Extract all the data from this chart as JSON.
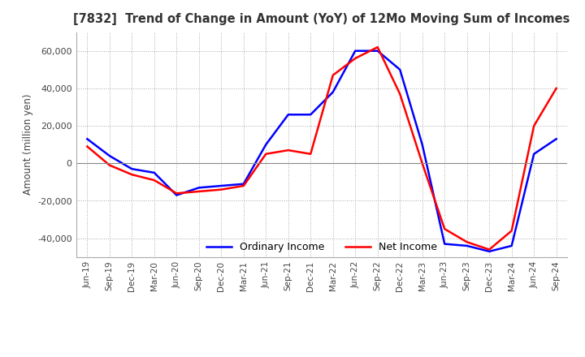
{
  "title": "[7832]  Trend of Change in Amount (YoY) of 12Mo Moving Sum of Incomes",
  "ylabel": "Amount (million yen)",
  "legend_labels": [
    "Ordinary Income",
    "Net Income"
  ],
  "line_colors": [
    "blue",
    "red"
  ],
  "background_color": "#ffffff",
  "grid_color": "#aaaaaa",
  "ylim": [
    -50000,
    70000
  ],
  "yticks": [
    -40000,
    -20000,
    0,
    20000,
    40000,
    60000
  ],
  "dates": [
    "Jun-19",
    "Sep-19",
    "Dec-19",
    "Mar-20",
    "Jun-20",
    "Sep-20",
    "Dec-20",
    "Mar-21",
    "Jun-21",
    "Sep-21",
    "Dec-21",
    "Mar-22",
    "Jun-22",
    "Sep-22",
    "Dec-22",
    "Mar-23",
    "Jun-23",
    "Sep-23",
    "Dec-23",
    "Mar-24",
    "Jun-24",
    "Sep-24"
  ],
  "ordinary_income": [
    13000,
    4000,
    -3000,
    -5000,
    -17000,
    -13000,
    -12000,
    -11000,
    10000,
    26000,
    26000,
    38000,
    60000,
    60000,
    50000,
    10000,
    -43000,
    -44000,
    -47000,
    -44000,
    5000,
    13000
  ],
  "net_income": [
    9000,
    -1000,
    -6000,
    -9000,
    -16000,
    -15000,
    -14000,
    -12000,
    5000,
    7000,
    5000,
    47000,
    56000,
    62000,
    37000,
    0,
    -35000,
    -42000,
    -46000,
    -36000,
    20000,
    40000
  ]
}
